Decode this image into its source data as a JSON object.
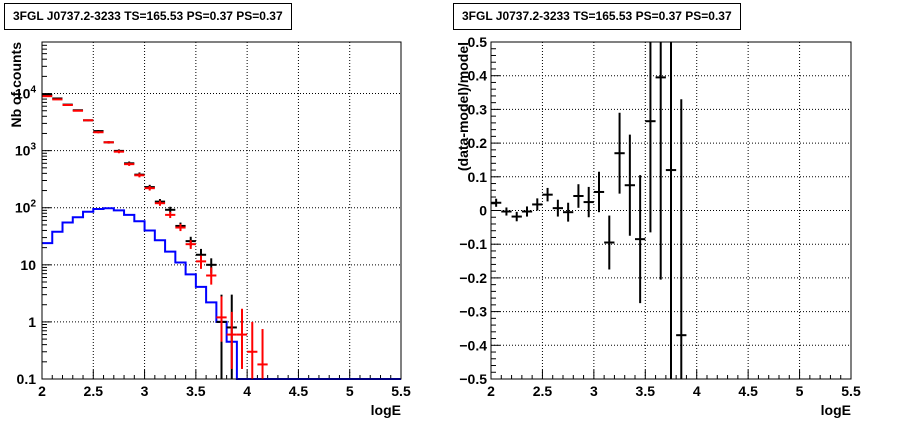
{
  "chart_data": [
    {
      "type": "step",
      "title": "3FGL J0737.2-3233 TS=165.53 PS=0.37 PS=0.37",
      "xlabel": "logE",
      "ylabel": "Nb of counts",
      "xlim": [
        2,
        5.5
      ],
      "ylim": [
        0.1,
        80000
      ],
      "yscale": "log",
      "grid": true,
      "legend": "none",
      "x_ticks": [
        "2",
        "2.5",
        "3",
        "3.5",
        "4",
        "4.5",
        "5",
        "5.5"
      ],
      "y_ticks": [
        "0.1",
        "1",
        "10",
        "10^2",
        "10^3",
        "10^4"
      ],
      "bin_edges": [
        2.0,
        2.1,
        2.2,
        2.3,
        2.4,
        2.5,
        2.6,
        2.7,
        2.8,
        2.9,
        3.0,
        3.1,
        3.2,
        3.3,
        3.4,
        3.5,
        3.6,
        3.7,
        3.8,
        3.9,
        4.0,
        4.1,
        4.2,
        4.3,
        4.4,
        4.5,
        4.6,
        4.7,
        4.8,
        4.9,
        5.0,
        5.1,
        5.2,
        5.3,
        5.4,
        5.5
      ],
      "series": [
        {
          "kind": "step",
          "color": "#0000ff",
          "values": [
            24,
            38,
            55,
            68,
            85,
            95,
            98,
            90,
            75,
            58,
            40,
            27,
            17,
            11,
            6.8,
            4.1,
            2.2,
            1.0,
            0.45,
            0.1,
            0.1,
            0.1,
            0.1,
            0.1,
            0.1,
            0.1,
            0.1,
            0.1,
            0.1,
            0.1,
            0.1,
            0.1,
            0.1,
            0.1,
            0.1
          ]
        },
        {
          "kind": "errorbar",
          "color": "#000000",
          "points": [
            {
              "x": 2.05,
              "y": 9500,
              "lo": 9300,
              "hi": 9700
            },
            {
              "x": 2.15,
              "y": 8200,
              "lo": 8020,
              "hi": 8380
            },
            {
              "x": 2.25,
              "y": 6400,
              "lo": 6240,
              "hi": 6560
            },
            {
              "x": 2.35,
              "y": 5100,
              "lo": 4960,
              "hi": 5240
            },
            {
              "x": 2.45,
              "y": 3400,
              "lo": 3290,
              "hi": 3510
            },
            {
              "x": 2.55,
              "y": 2200,
              "lo": 2110,
              "hi": 2290
            },
            {
              "x": 2.65,
              "y": 1400,
              "lo": 1330,
              "hi": 1470
            },
            {
              "x": 2.75,
              "y": 990,
              "lo": 930,
              "hi": 1050
            },
            {
              "x": 2.85,
              "y": 600,
              "lo": 560,
              "hi": 645
            },
            {
              "x": 2.95,
              "y": 380,
              "lo": 350,
              "hi": 415
            },
            {
              "x": 3.05,
              "y": 230,
              "lo": 210,
              "hi": 252
            },
            {
              "x": 3.15,
              "y": 128,
              "lo": 114,
              "hi": 142
            },
            {
              "x": 3.25,
              "y": 92,
              "lo": 80,
              "hi": 104
            },
            {
              "x": 3.35,
              "y": 48,
              "lo": 41,
              "hi": 55
            },
            {
              "x": 3.45,
              "y": 26,
              "lo": 21,
              "hi": 31
            },
            {
              "x": 3.55,
              "y": 15,
              "lo": 11,
              "hi": 19
            },
            {
              "x": 3.65,
              "y": 10,
              "lo": 7,
              "hi": 13
            },
            {
              "x": 3.75,
              "y": 1.0,
              "lo": 0.1,
              "hi": 3
            },
            {
              "x": 3.85,
              "y": 0.8,
              "lo": 0.1,
              "hi": 3
            }
          ]
        },
        {
          "kind": "errorbar",
          "color": "#ff0000",
          "points": [
            {
              "x": 2.05,
              "y": 9000,
              "lo": 8810,
              "hi": 9190
            },
            {
              "x": 2.15,
              "y": 7900,
              "lo": 7720,
              "hi": 8080
            },
            {
              "x": 2.25,
              "y": 6300,
              "lo": 6140,
              "hi": 6460
            },
            {
              "x": 2.35,
              "y": 5000,
              "lo": 4860,
              "hi": 5140
            },
            {
              "x": 2.45,
              "y": 3400,
              "lo": 3290,
              "hi": 3510
            },
            {
              "x": 2.55,
              "y": 2100,
              "lo": 2010,
              "hi": 2190
            },
            {
              "x": 2.65,
              "y": 1400,
              "lo": 1330,
              "hi": 1470
            },
            {
              "x": 2.75,
              "y": 960,
              "lo": 900,
              "hi": 1020
            },
            {
              "x": 2.85,
              "y": 580,
              "lo": 540,
              "hi": 620
            },
            {
              "x": 2.95,
              "y": 370,
              "lo": 340,
              "hi": 400
            },
            {
              "x": 3.05,
              "y": 220,
              "lo": 200,
              "hi": 240
            },
            {
              "x": 3.15,
              "y": 120,
              "lo": 108,
              "hi": 133
            },
            {
              "x": 3.25,
              "y": 75,
              "lo": 66,
              "hi": 85
            },
            {
              "x": 3.35,
              "y": 45,
              "lo": 39,
              "hi": 52
            },
            {
              "x": 3.45,
              "y": 23,
              "lo": 19,
              "hi": 27
            },
            {
              "x": 3.55,
              "y": 11.5,
              "lo": 8.5,
              "hi": 14.5
            },
            {
              "x": 3.65,
              "y": 6.5,
              "lo": 4.5,
              "hi": 9
            },
            {
              "x": 3.75,
              "y": 1.2,
              "lo": 0.45,
              "hi": 2.8
            },
            {
              "x": 3.85,
              "y": 0.6,
              "lo": 0.15,
              "hi": 1.5
            },
            {
              "x": 3.95,
              "y": 0.6,
              "lo": 0.15,
              "hi": 1.7
            },
            {
              "x": 4.05,
              "y": 0.3,
              "lo": 0.1,
              "hi": 1.0
            },
            {
              "x": 4.15,
              "y": 0.18,
              "lo": 0.1,
              "hi": 0.75
            }
          ]
        }
      ]
    },
    {
      "type": "scatter",
      "title": "3FGL J0737.2-3233 TS=165.53 PS=0.37 PS=0.37",
      "xlabel": "logE",
      "ylabel": "(data-model)/model",
      "xlim": [
        2,
        5.5
      ],
      "ylim": [
        -0.5,
        0.5
      ],
      "grid": true,
      "legend": "none",
      "x_ticks": [
        "2",
        "2.5",
        "3",
        "3.5",
        "4",
        "4.5",
        "5",
        "5.5"
      ],
      "y_ticks": [
        "−0.5",
        "−0.4",
        "−0.3",
        "−0.2",
        "−0.1",
        "0",
        "0.1",
        "0.2",
        "0.3",
        "0.4",
        "0.5"
      ],
      "series": [
        {
          "kind": "errorbar",
          "color": "#000000",
          "points": [
            {
              "x": 2.05,
              "y": 0.023,
              "err": 0.012
            },
            {
              "x": 2.15,
              "y": -0.003,
              "err": 0.012
            },
            {
              "x": 2.25,
              "y": -0.018,
              "err": 0.014
            },
            {
              "x": 2.35,
              "y": -0.003,
              "err": 0.015
            },
            {
              "x": 2.45,
              "y": 0.018,
              "err": 0.018
            },
            {
              "x": 2.55,
              "y": 0.047,
              "err": 0.02
            },
            {
              "x": 2.65,
              "y": 0.007,
              "err": 0.025
            },
            {
              "x": 2.75,
              "y": -0.005,
              "err": 0.028
            },
            {
              "x": 2.85,
              "y": 0.043,
              "err": 0.035
            },
            {
              "x": 2.95,
              "y": 0.025,
              "err": 0.045
            },
            {
              "x": 3.05,
              "y": 0.055,
              "err": 0.06
            },
            {
              "x": 3.15,
              "y": -0.095,
              "err": 0.08
            },
            {
              "x": 3.25,
              "y": 0.17,
              "err": 0.12
            },
            {
              "x": 3.35,
              "y": 0.075,
              "err": 0.15
            },
            {
              "x": 3.45,
              "y": -0.085,
              "err": 0.19
            },
            {
              "x": 3.55,
              "y": 0.265,
              "err": 0.33
            },
            {
              "x": 3.65,
              "y": 0.395,
              "err": 0.6
            },
            {
              "x": 3.75,
              "y": 0.12,
              "err": 0.9
            },
            {
              "x": 3.85,
              "y": -0.37,
              "err": 0.7
            }
          ]
        }
      ]
    }
  ]
}
